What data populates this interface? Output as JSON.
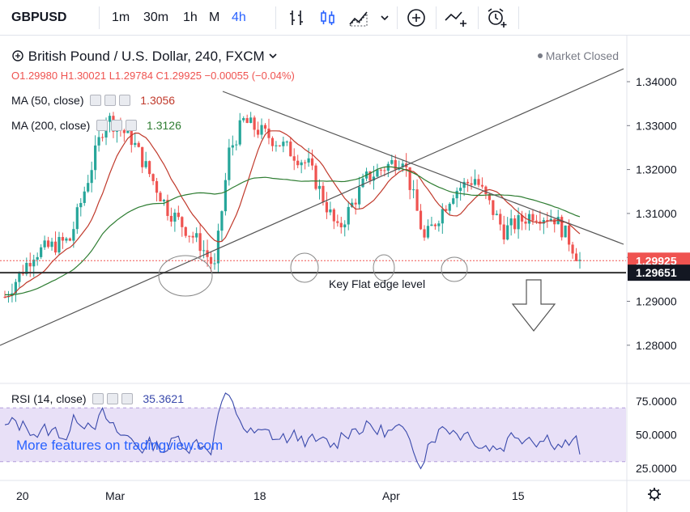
{
  "toolbar": {
    "symbol": "GBPUSD",
    "intervals": [
      "1m",
      "30m",
      "1h",
      "M",
      "4h"
    ],
    "active_interval": "4h"
  },
  "legend": {
    "title": "British Pound / U.S. Dollar, 240, FXCM",
    "ohlc": "O1.29980 H1.30021 L1.29784 C1.29925 −0.00055 (−0.04%)",
    "ma50_label": "MA (50, close)",
    "ma50_value": "1.3056",
    "ma200_label": "MA (200, close)",
    "ma200_value": "1.3126",
    "rsi_label": "RSI (14, close)",
    "rsi_value": "35.3621",
    "market_status": "Market Closed"
  },
  "annotation": {
    "key_level_text": "Key Flat edge level"
  },
  "watermark": "More features on tradingview.com",
  "colors": {
    "up": "#26a69a",
    "down": "#ef5350",
    "ma50": "#c0392b",
    "ma200": "#2e7d32",
    "rsi": "#3949ab",
    "rsi_band": "#e8e0f7",
    "accent": "#2962ff"
  },
  "chart_data": [
    {
      "type": "candlestick",
      "y_ticks": [
        "1.34000",
        "1.33000",
        "1.32000",
        "1.31000",
        "1.30000",
        "1.29000",
        "1.28000"
      ],
      "ylim": [
        1.2745,
        1.3475
      ],
      "x_ticks": [
        "20",
        "Mar",
        "18",
        "Apr",
        "15"
      ],
      "price_labels": [
        {
          "value": 1.29925,
          "text": "1.29925",
          "color": "#ef5350"
        },
        {
          "value": 1.29651,
          "text": "1.29651",
          "color": "#131722"
        }
      ],
      "horizontal_level": 1.29651,
      "ma50_last": 1.3056,
      "ma200_last": 1.3126
    },
    {
      "type": "line",
      "name": "RSI (14, close)",
      "y_ticks": [
        "75.0000",
        "50.0000",
        "25.0000"
      ],
      "ylim": [
        18,
        87
      ],
      "band": [
        30,
        70
      ],
      "last": 35.3621
    }
  ]
}
